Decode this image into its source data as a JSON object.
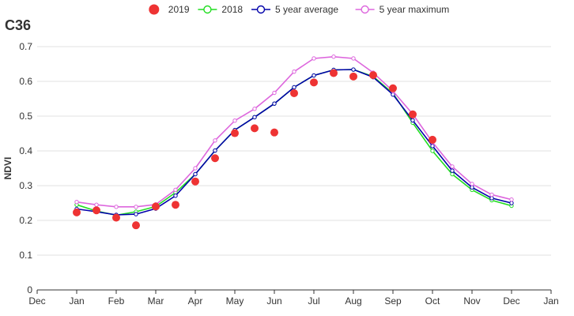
{
  "chart_data": {
    "type": "line",
    "title": "C36",
    "ylabel": "NDVI",
    "xlabel": "",
    "ylim": [
      0,
      0.7
    ],
    "y_ticks": [
      "0",
      "0.1",
      "0.2",
      "0.3",
      "0.4",
      "0.5",
      "0.6",
      "0.7"
    ],
    "x_tick_labels": [
      "Dec",
      "Jan",
      "Feb",
      "Mar",
      "Apr",
      "May",
      "Jun",
      "Jul",
      "Aug",
      "Sep",
      "Oct",
      "Nov",
      "Dec",
      "Jan"
    ],
    "x_range_months": [
      0,
      13
    ],
    "grid": "horizontal",
    "legend_position": "top",
    "series": [
      {
        "name": "2019",
        "style": "points",
        "color": "#ee3333",
        "x": [
          1.0,
          1.5,
          2.0,
          2.5,
          3.0,
          3.5,
          4.0,
          4.5,
          5.0,
          5.5,
          6.0,
          6.5,
          7.0,
          7.5,
          8.0,
          8.5,
          9.0,
          9.5,
          10.0
        ],
        "values": [
          0.223,
          0.229,
          0.208,
          0.186,
          0.24,
          0.245,
          0.312,
          0.379,
          0.451,
          0.465,
          0.453,
          0.566,
          0.597,
          0.624,
          0.614,
          0.618,
          0.58,
          0.505,
          0.432
        ]
      },
      {
        "name": "2018",
        "style": "line",
        "color": "#22dd22",
        "x": [
          1.0,
          1.5,
          2.0,
          2.5,
          3.0,
          3.5,
          4.0,
          4.5,
          5.0,
          5.5,
          6.0,
          6.5,
          7.0,
          7.5,
          8.0,
          8.5,
          9.0,
          9.5,
          10.0,
          10.5,
          11.0,
          11.5,
          12.0
        ],
        "values": [
          0.245,
          0.227,
          0.215,
          0.225,
          0.24,
          0.28,
          0.333,
          0.401,
          0.46,
          0.497,
          0.536,
          0.583,
          0.617,
          0.633,
          0.634,
          0.614,
          0.566,
          0.481,
          0.4,
          0.333,
          0.288,
          0.258,
          0.242
        ]
      },
      {
        "name": "5 year average",
        "style": "line",
        "color": "#0000aa",
        "x": [
          1.0,
          1.5,
          2.0,
          2.5,
          3.0,
          3.5,
          4.0,
          4.5,
          5.0,
          5.5,
          6.0,
          6.5,
          7.0,
          7.5,
          8.0,
          8.5,
          9.0,
          9.5,
          10.0,
          10.5,
          11.0,
          11.5,
          12.0
        ],
        "values": [
          0.233,
          0.225,
          0.216,
          0.218,
          0.234,
          0.271,
          0.333,
          0.401,
          0.46,
          0.497,
          0.536,
          0.583,
          0.617,
          0.633,
          0.634,
          0.612,
          0.562,
          0.488,
          0.414,
          0.343,
          0.295,
          0.264,
          0.25
        ]
      },
      {
        "name": "5 year maximum",
        "style": "line",
        "color": "#dd66dd",
        "x": [
          1.0,
          1.5,
          2.0,
          2.5,
          3.0,
          3.5,
          4.0,
          4.5,
          5.0,
          5.5,
          6.0,
          6.5,
          7.0,
          7.5,
          8.0,
          8.5,
          9.0,
          9.5,
          10.0,
          10.5,
          11.0,
          11.5,
          12.0
        ],
        "values": [
          0.253,
          0.245,
          0.239,
          0.239,
          0.246,
          0.288,
          0.35,
          0.43,
          0.487,
          0.521,
          0.567,
          0.628,
          0.666,
          0.671,
          0.666,
          0.625,
          0.572,
          0.506,
          0.425,
          0.355,
          0.305,
          0.274,
          0.26
        ]
      }
    ]
  }
}
